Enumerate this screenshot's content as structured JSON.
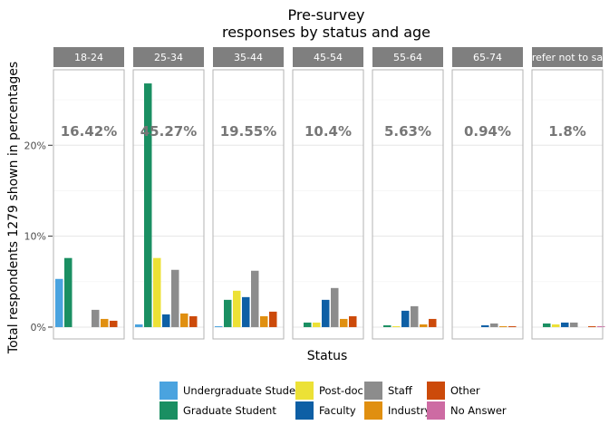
{
  "chart_data": {
    "type": "bar",
    "title": [
      "Pre-survey",
      "responses by status and age"
    ],
    "xlabel": "Status",
    "ylabel": "Total respondents 1279 shown in percentages",
    "y_ticks": [
      {
        "value": 0,
        "label": "0%"
      },
      {
        "value": 10,
        "label": "10%"
      },
      {
        "value": 20,
        "label": "20%"
      }
    ],
    "ylim": [
      -1.3,
      28.3
    ],
    "grid": true,
    "legend_position": "bottom",
    "series": [
      {
        "name": "Undergraduate Student",
        "color": "#4aa3df"
      },
      {
        "name": "Graduate Student",
        "color": "#1a8f62"
      },
      {
        "name": "Post-doc",
        "color": "#ece136"
      },
      {
        "name": "Faculty",
        "color": "#0e5fa5"
      },
      {
        "name": "Staff",
        "color": "#8c8c8c"
      },
      {
        "name": "Industry",
        "color": "#e08f10"
      },
      {
        "name": "Other",
        "color": "#cc4a0a"
      },
      {
        "name": "No Answer",
        "color": "#cd6ba3"
      }
    ],
    "facets": [
      {
        "label": "18-24",
        "total_label": "16.42%",
        "values": [
          5.3,
          7.6,
          0,
          0,
          1.9,
          0.9,
          0.7,
          0
        ]
      },
      {
        "label": "25-34",
        "total_label": "45.27%",
        "values": [
          0.3,
          26.8,
          7.6,
          1.4,
          6.3,
          1.5,
          1.2,
          0
        ]
      },
      {
        "label": "35-44",
        "total_label": "19.55%",
        "values": [
          0.1,
          3.0,
          4.0,
          3.3,
          6.2,
          1.2,
          1.7,
          0
        ]
      },
      {
        "label": "45-54",
        "total_label": "10.4%",
        "values": [
          0,
          0.5,
          0.5,
          3.0,
          4.3,
          0.9,
          1.2,
          0
        ]
      },
      {
        "label": "55-64",
        "total_label": "5.63%",
        "values": [
          0,
          0.2,
          0.1,
          1.8,
          2.3,
          0.3,
          0.9,
          0
        ]
      },
      {
        "label": "65-74",
        "total_label": "0.94%",
        "values": [
          0,
          0,
          0,
          0.2,
          0.4,
          0.1,
          0.1,
          0
        ]
      },
      {
        "label": "Prefer not to say",
        "total_label": "1.8%",
        "values": [
          0,
          0.4,
          0.3,
          0.5,
          0.5,
          0,
          0.1,
          0.1
        ]
      }
    ]
  }
}
